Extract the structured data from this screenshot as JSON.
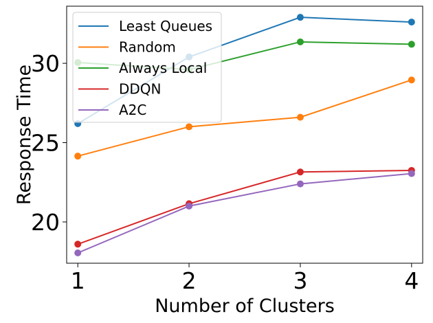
{
  "chart_data": {
    "type": "line",
    "title": "",
    "xlabel": "Number of Clusters",
    "ylabel": "Response Time",
    "x": [
      1,
      2,
      3,
      4
    ],
    "xticks": [
      "1",
      "2",
      "3",
      "4"
    ],
    "yticks": [
      "20",
      "25",
      "30"
    ],
    "xlim": [
      0.9,
      4.1
    ],
    "ylim": [
      17.4,
      33.6
    ],
    "grid": false,
    "legend_position": "top-left",
    "series": [
      {
        "name": "Least Queues",
        "color": "#1f77b4",
        "values": [
          26.2,
          30.4,
          32.9,
          32.6
        ]
      },
      {
        "name": "Random",
        "color": "#ff7f0e",
        "values": [
          24.15,
          26.0,
          26.6,
          28.95
        ]
      },
      {
        "name": "Always Local",
        "color": "#2ca02c",
        "values": [
          30.05,
          29.6,
          31.35,
          31.2
        ]
      },
      {
        "name": "DDQN",
        "color": "#d62728",
        "values": [
          18.6,
          21.15,
          23.15,
          23.25
        ]
      },
      {
        "name": "A2C",
        "color": "#9467bd",
        "values": [
          18.05,
          21.0,
          22.4,
          23.05
        ]
      }
    ]
  }
}
